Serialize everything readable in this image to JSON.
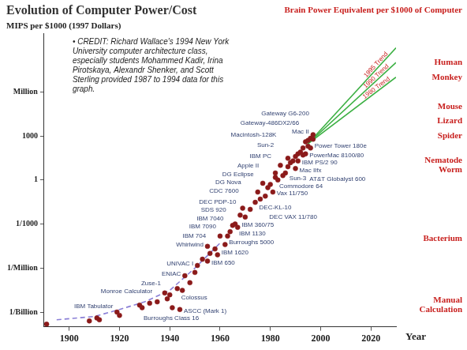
{
  "chart_data": {
    "type": "scatter",
    "title": "Evolution of Computer Power/Cost",
    "y_label": "MIPS per $1000 (1997 Dollars)",
    "x_label": "Year",
    "note": "• CREDIT: Richard Wallace's 1994 New York University computer architecture class, especially students Mohammed Kadir, Irina Pirotskaya, Alexandr Shenker, and Scott Sterling provided 1987 to 1994 data for this graph.",
    "log": "y",
    "grid": false,
    "marker": "circle",
    "color": "#8b1a1a",
    "xlim": [
      1890,
      2030
    ],
    "xticks": [
      1900,
      1920,
      1940,
      1960,
      1980,
      2000,
      2020
    ],
    "ylim": [
      1e-10,
      10000000000.0
    ],
    "yticks": [
      {
        "value": 1e-09,
        "label": "1/Billion"
      },
      {
        "value": 1e-06,
        "label": "1/Million"
      },
      {
        "value": 0.001,
        "label": "1/1000"
      },
      1,
      1000,
      {
        "value": 1000000,
        "label": "Million"
      }
    ],
    "x": [
      1891,
      1908,
      1911,
      1912,
      1919,
      1920,
      1928,
      1929,
      1932,
      1935,
      1938,
      1939,
      1940,
      1941,
      1943,
      1944,
      1945,
      1946,
      1948,
      1950,
      1951,
      1953,
      1955,
      1955,
      1956,
      1958,
      1959,
      1960,
      1962,
      1963,
      1964,
      1965,
      1966,
      1967,
      1968,
      1969,
      1970,
      1972,
      1974,
      1975,
      1976,
      1977,
      1978,
      1979,
      1980,
      1981,
      1982,
      1982,
      1983,
      1984,
      1985,
      1986,
      1987,
      1987,
      1988,
      1989,
      1990,
      1990,
      1991,
      1991,
      1992,
      1993,
      1993,
      1994,
      1994,
      1995,
      1995,
      1996,
      1996,
      1997,
      1997
    ],
    "values": [
      1.5e-10,
      2.5e-10,
      4e-10,
      3e-10,
      1e-09,
      6e-10,
      3e-09,
      2e-09,
      4e-09,
      5e-09,
      2e-08,
      8e-09,
      1.5e-08,
      2e-09,
      4e-08,
      1.5e-09,
      3e-08,
      3e-07,
      1e-07,
      5e-07,
      1.5e-06,
      4e-06,
      3e-06,
      3e-05,
      1e-05,
      2e-05,
      8e-06,
      0.00015,
      4e-05,
      0.00015,
      0.0003,
      0.0008,
      0.001,
      0.0006,
      0.004,
      0.012,
      0.003,
      0.01,
      0.03,
      0.15,
      0.05,
      0.6,
      0.08,
      0.3,
      0.5,
      0.15,
      3,
      1.5,
      1,
      10,
      2,
      3,
      30,
      8,
      15,
      20,
      6,
      40,
      20,
      60,
      80,
      150,
      50,
      60,
      400,
      200,
      500,
      150,
      700,
      1200,
      600
    ],
    "point_labels": [
      null,
      null,
      "Monroe Calculator",
      null,
      "IBM Tabulator",
      null,
      "Burroughs Class 16",
      null,
      null,
      null,
      "Zuse-1",
      null,
      null,
      null,
      "Colossus",
      "ASCC (Mark 1)",
      null,
      "ENIAC",
      null,
      null,
      "UNIVAC I",
      null,
      "IBM 650",
      "Whirlwind",
      "IBM 704",
      null,
      "IBM 1620",
      "IBM 7090",
      "Burroughs 5000",
      "IBM 7040",
      "SDS 920",
      null,
      "IBM 1130",
      "IBM 360/75",
      "DEC PDP-10",
      "CDC 7600",
      "DG Nova",
      null,
      "DEC-KL-10",
      "DG Eclipse",
      null,
      "Apple II",
      "DEC VAX 11/780",
      null,
      null,
      "Vax 11/750",
      "Commodore 64",
      "IBM PC",
      "Sun-2",
      "Macintosh-128K",
      null,
      "Sun-3",
      "Mac II",
      null,
      null,
      null,
      "Mac IIfx",
      null,
      "IBM PS/2 90",
      null,
      null,
      "Gateway-486DX2/66",
      null,
      "AT&T Globalyst 600",
      "PowerMac 8100/80",
      null,
      null,
      "Power Tower 180e",
      null,
      "Gateway G6-200",
      null
    ],
    "lines": [
      {
        "label": "1995 Trend",
        "color": "#3cb043",
        "line_style": "solid",
        "x": [
          1995,
          2030
        ],
        "values": [
          300,
          1000000000
        ]
      },
      {
        "label": "1990 Trend",
        "color": "#3cb043",
        "line_style": "solid",
        "x": [
          1995,
          2030
        ],
        "values": [
          300,
          100000000
        ]
      },
      {
        "label": "1980 Trend",
        "color": "#3cb043",
        "line_style": "solid",
        "x": [
          1995,
          2030
        ],
        "values": [
          300,
          10000000
        ]
      },
      {
        "color": "#8a7fd6",
        "line_style": "dashed",
        "x": [
          1895,
          1910,
          1920,
          1930,
          1940,
          1950,
          1960
        ],
        "values": [
          3e-10,
          5e-10,
          1.5e-09,
          5e-09,
          3e-08,
          1e-06,
          5e-05
        ]
      }
    ],
    "brain": {
      "title": "Brain Power Equivalent per $1000 of Computer",
      "levels": [
        {
          "label": "Human",
          "value": 100000000
        },
        {
          "label": "Monkey",
          "value": 10000000
        },
        {
          "label": "Mouse",
          "value": 100000
        },
        {
          "label": "Lizard",
          "value": 10000
        },
        {
          "label": "Spider",
          "value": 1000
        },
        {
          "label": "Nematode Worm",
          "value": 10
        },
        {
          "label": "Bacterium",
          "value": 0.0001
        },
        {
          "label": "Manual Calculation",
          "value": 3e-09
        }
      ]
    }
  }
}
